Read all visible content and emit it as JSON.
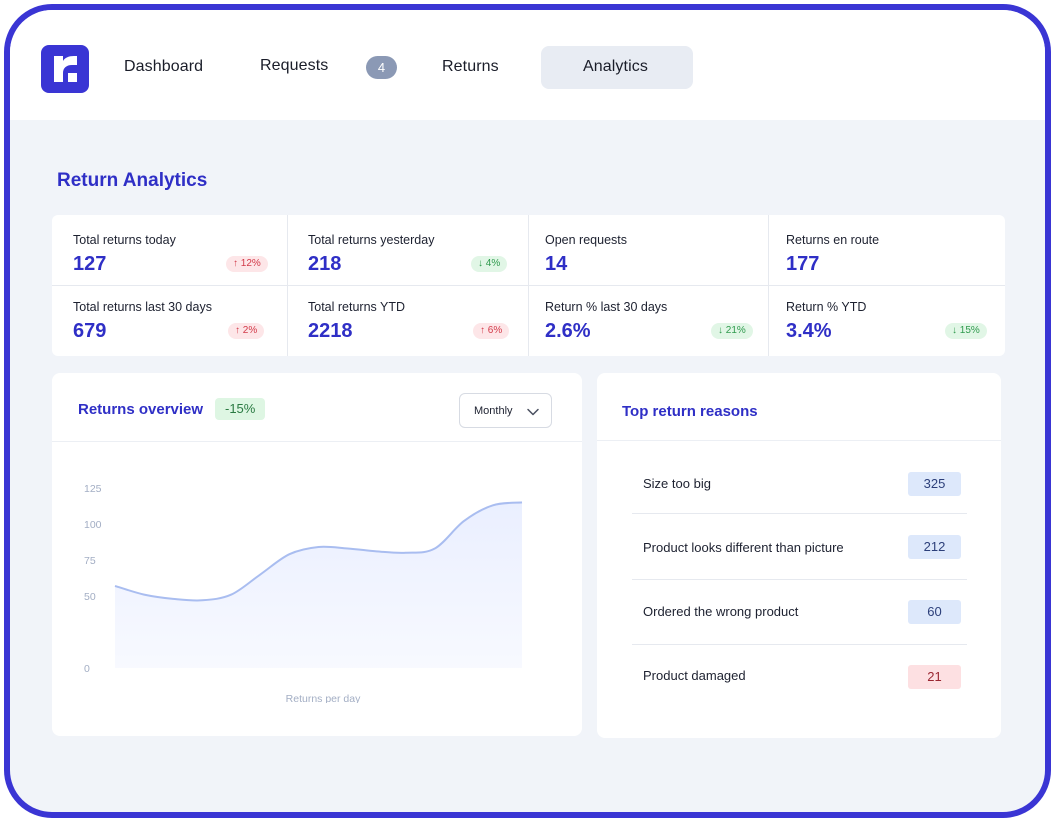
{
  "nav": {
    "items": [
      "Dashboard",
      "Requests",
      "Returns",
      "Analytics"
    ],
    "requests_badge": "4",
    "active": "Analytics"
  },
  "page_title": "Return Analytics",
  "stats": [
    {
      "label": "Total returns today",
      "value": "127",
      "delta": "↑ 12%",
      "trend": "up"
    },
    {
      "label": "Total returns yesterday",
      "value": "218",
      "delta": "↓ 4%",
      "trend": "down"
    },
    {
      "label": "Open requests",
      "value": "14",
      "delta": "",
      "trend": ""
    },
    {
      "label": "Returns en route",
      "value": "177",
      "delta": "",
      "trend": ""
    },
    {
      "label": "Total returns last 30 days",
      "value": "679",
      "delta": "↑ 2%",
      "trend": "up"
    },
    {
      "label": "Total returns YTD",
      "value": "2218",
      "delta": "↑ 6%",
      "trend": "up"
    },
    {
      "label": "Return % last 30 days",
      "value": "2.6%",
      "delta": "↓ 21%",
      "trend": "down"
    },
    {
      "label": "Return % YTD",
      "value": "3.4%",
      "delta": "↓ 15%",
      "trend": "down"
    }
  ],
  "overview": {
    "title": "Returns overview",
    "change": "-15%",
    "period": "Monthly"
  },
  "chart_data": {
    "type": "area",
    "title": "",
    "xlabel": "Returns per day",
    "ylabel": "",
    "ylim": [
      0,
      125
    ],
    "yticks": [
      0,
      50,
      75,
      100,
      125
    ],
    "grid": false,
    "series": [
      {
        "values": [
          57,
          51,
          48,
          47,
          51,
          65,
          79,
          84,
          83,
          81,
          80,
          83,
          102,
          113,
          115
        ]
      }
    ],
    "colors": {
      "line": "#a9bdf0",
      "fill": "#eaefff"
    }
  },
  "reasons": {
    "title": "Top return reasons",
    "items": [
      {
        "label": "Size too big",
        "count": "325",
        "tone": "blue"
      },
      {
        "label": "Product looks different than picture",
        "count": "212",
        "tone": "blue"
      },
      {
        "label": "Ordered the wrong product",
        "count": "60",
        "tone": "blue"
      },
      {
        "label": "Product damaged",
        "count": "21",
        "tone": "red"
      }
    ]
  }
}
